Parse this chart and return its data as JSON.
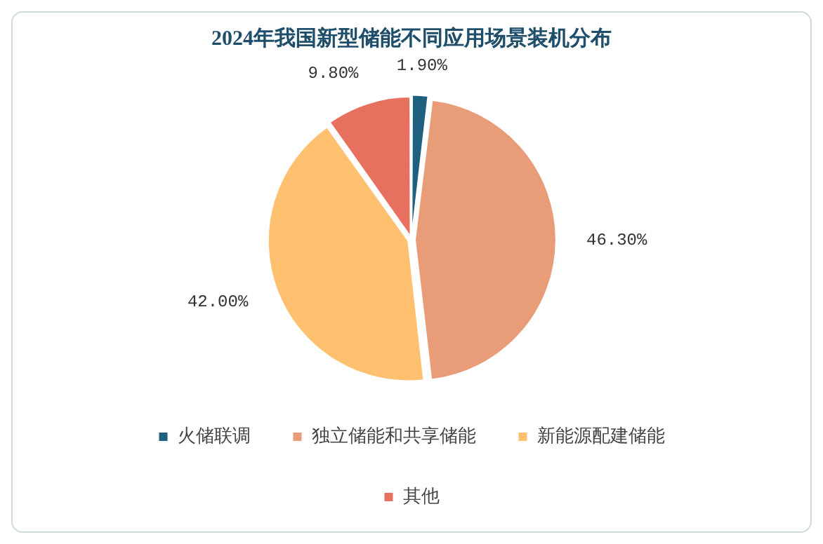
{
  "chart_data": {
    "type": "pie",
    "title": "2024年我国新型储能不同应用场景装机分布",
    "categories": [
      "火储联调",
      "独立储能和共享储能",
      "新能源配建储能",
      "其他"
    ],
    "values": [
      1.9,
      46.3,
      42.0,
      9.8
    ],
    "colors": [
      "#1f5f80",
      "#e89c78",
      "#ffc170",
      "#e8705e"
    ],
    "value_labels": [
      "1.90%",
      "46.30%",
      "42.00%",
      "9.80%"
    ],
    "legend": "bottom"
  }
}
